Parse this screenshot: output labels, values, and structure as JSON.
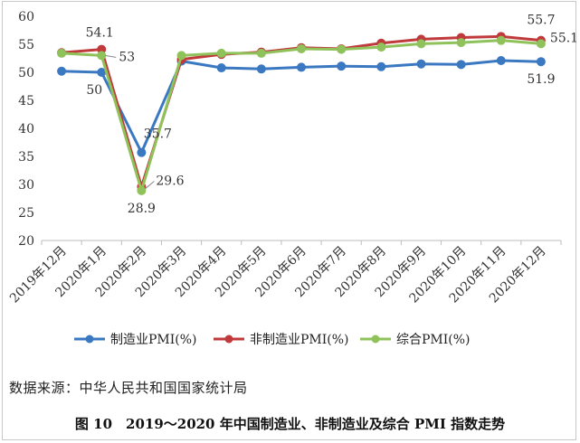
{
  "chart_data": {
    "type": "line",
    "categories": [
      "2019年12月",
      "2020年1月",
      "2020年2月",
      "2020年3月",
      "2020年4月",
      "2020年5月",
      "2020年6月",
      "2020年7月",
      "2020年8月",
      "2020年9月",
      "2020年10月",
      "2020年11月",
      "2020年12月"
    ],
    "ylim": [
      20,
      60
    ],
    "yticks": [
      20,
      25,
      30,
      35,
      40,
      45,
      50,
      55,
      60
    ],
    "grid": false,
    "legend_position": "bottom",
    "series": [
      {
        "name": "制造业PMI(%)",
        "color": "#3b78c2",
        "values": [
          50.2,
          50.0,
          35.7,
          52.0,
          50.8,
          50.6,
          50.9,
          51.1,
          51.0,
          51.5,
          51.4,
          52.1,
          51.9
        ]
      },
      {
        "name": "非制造业PMI(%)",
        "color": "#c0393b",
        "values": [
          53.5,
          54.1,
          29.6,
          52.3,
          53.2,
          53.6,
          54.4,
          54.2,
          55.2,
          55.9,
          56.2,
          56.4,
          55.7
        ]
      },
      {
        "name": "综合PMI(%)",
        "color": "#8fc25a",
        "values": [
          53.4,
          53.0,
          28.9,
          53.0,
          53.4,
          53.4,
          54.2,
          54.1,
          54.5,
          55.1,
          55.3,
          55.7,
          55.1
        ]
      }
    ],
    "data_labels": [
      {
        "text": "54.1",
        "series": 1,
        "index": 1
      },
      {
        "text": "53",
        "series": 2,
        "index": 1
      },
      {
        "text": "50",
        "series": 0,
        "index": 1
      },
      {
        "text": "35.7",
        "series": 0,
        "index": 2
      },
      {
        "text": "29.6",
        "series": 1,
        "index": 2
      },
      {
        "text": "28.9",
        "series": 2,
        "index": 2
      },
      {
        "text": "55.7",
        "series": 1,
        "index": 12
      },
      {
        "text": "55.1",
        "series": 2,
        "index": 12
      },
      {
        "text": "51.9",
        "series": 0,
        "index": 12
      }
    ]
  },
  "source_text": "数据来源：中华人民共和国国家统计局",
  "caption": "图 10　2019～2020 年中国制造业、非制造业及综合 PMI 指数走势"
}
